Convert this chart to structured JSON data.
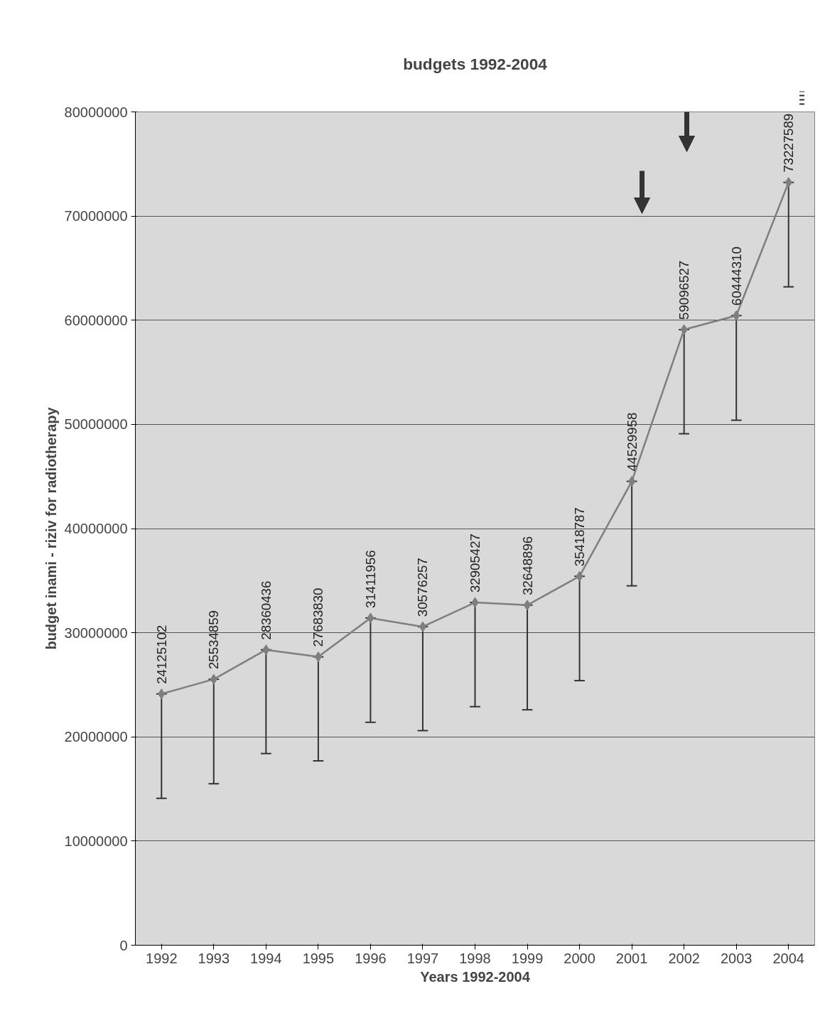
{
  "chart_data": {
    "type": "line",
    "title": "budgets 1992-2004",
    "xlabel": "Years 1992-2004",
    "ylabel": "budget inami - riziv for radiotherapy",
    "categories": [
      "1992",
      "1993",
      "1994",
      "1995",
      "1996",
      "1997",
      "1998",
      "1999",
      "2000",
      "2001",
      "2002",
      "2003",
      "2004"
    ],
    "series": [
      {
        "color": "#7f7f7f",
        "values": [
          24125102,
          25534859,
          28360436,
          27683830,
          31411956,
          30576257,
          32905427,
          32648896,
          35418787,
          44529958,
          59096527,
          60444310,
          73227589
        ],
        "errors": [
          [
            14100000,
            24125102
          ],
          [
            15500000,
            25534859
          ],
          [
            18400000,
            28360436
          ],
          [
            17700000,
            27683830
          ],
          [
            21400000,
            31411956
          ],
          [
            20600000,
            30576257
          ],
          [
            22900000,
            32905427
          ],
          [
            22600000,
            32648896
          ],
          [
            25400000,
            35418787
          ],
          [
            34500000,
            44529958
          ],
          [
            49100000,
            59096527
          ],
          [
            50400000,
            60444310
          ],
          [
            63200000,
            73227589
          ]
        ]
      }
    ],
    "ylim": [
      0,
      80000000
    ],
    "yticks": [
      0,
      10000000,
      20000000,
      30000000,
      40000000,
      50000000,
      60000000,
      70000000,
      80000000
    ],
    "grid": "y",
    "marker": "diamond",
    "line_style": "solid",
    "data_labels": true
  }
}
